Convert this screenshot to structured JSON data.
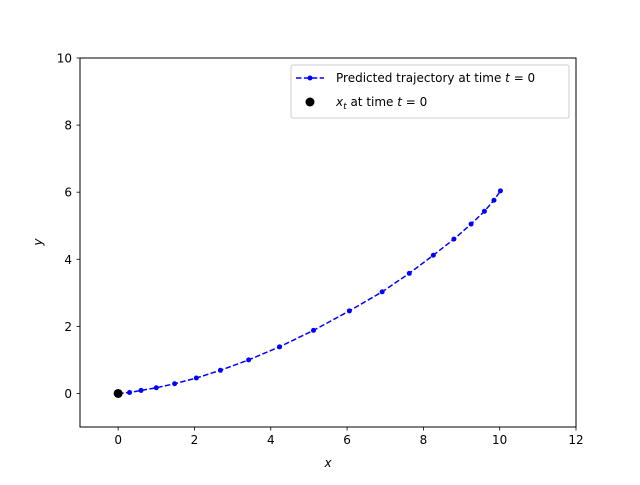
{
  "chart_data": {
    "type": "line",
    "xlabel": "x",
    "ylabel": "y",
    "xlim": [
      -1,
      12
    ],
    "ylim": [
      -1,
      10
    ],
    "xticks": [
      0,
      2,
      4,
      6,
      8,
      10,
      12
    ],
    "yticks": [
      0,
      2,
      4,
      6,
      8,
      10
    ],
    "grid": false,
    "legend_position": "top-right",
    "series": [
      {
        "name": "Predicted trajectory at time t = 0",
        "label_parts": {
          "before": "Predicted trajectory at time ",
          "var": "t",
          "after": " = 0"
        },
        "style": "dashed line with dot markers",
        "color": "#0000ff",
        "x": [
          0.0,
          0.3,
          0.6,
          1.0,
          1.48,
          2.05,
          2.68,
          3.42,
          4.23,
          5.12,
          6.06,
          6.92,
          7.63,
          8.26,
          8.8,
          9.25,
          9.6,
          9.85,
          10.02
        ],
        "y": [
          0.0,
          0.03,
          0.09,
          0.17,
          0.29,
          0.46,
          0.69,
          1.0,
          1.39,
          1.88,
          2.46,
          3.03,
          3.58,
          4.12,
          4.6,
          5.05,
          5.43,
          5.76,
          6.04
        ]
      },
      {
        "name": "x_t at time t = 0",
        "label_parts": {
          "var": "x",
          "sub": "t",
          "mid": " at time ",
          "var2": "t",
          "after": " = 0"
        },
        "style": "single large black point",
        "color": "#000000",
        "x": [
          0
        ],
        "y": [
          0
        ]
      }
    ]
  }
}
